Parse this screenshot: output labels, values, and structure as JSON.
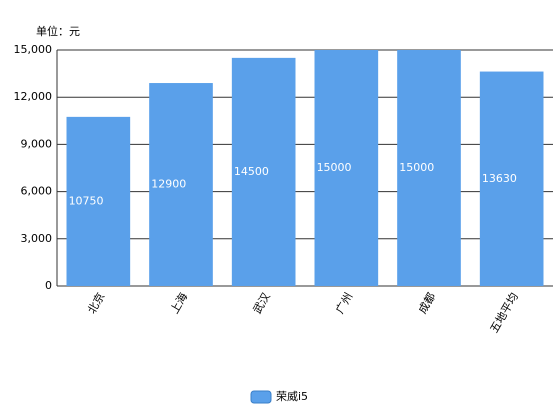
{
  "chart_data": {
    "type": "bar",
    "ylabel": "单位：元",
    "categories": [
      "北京",
      "上海",
      "武汉",
      "广州",
      "成都",
      "五地平均"
    ],
    "series": [
      {
        "name": "荣威i5",
        "color": "#5aa0ea",
        "values": [
          10750,
          12900,
          14500,
          15000,
          15000,
          13630
        ]
      }
    ],
    "ylim": [
      0,
      15000
    ],
    "yticks": [
      0,
      {
        "value": 3000,
        "label": "3,000"
      },
      {
        "value": 6000,
        "label": "6,000"
      },
      {
        "value": 9000,
        "label": "9,000"
      },
      {
        "value": 12000,
        "label": "12,000"
      },
      {
        "value": 15000,
        "label": "15,000"
      }
    ],
    "grid": true,
    "legend": "bottom"
  }
}
